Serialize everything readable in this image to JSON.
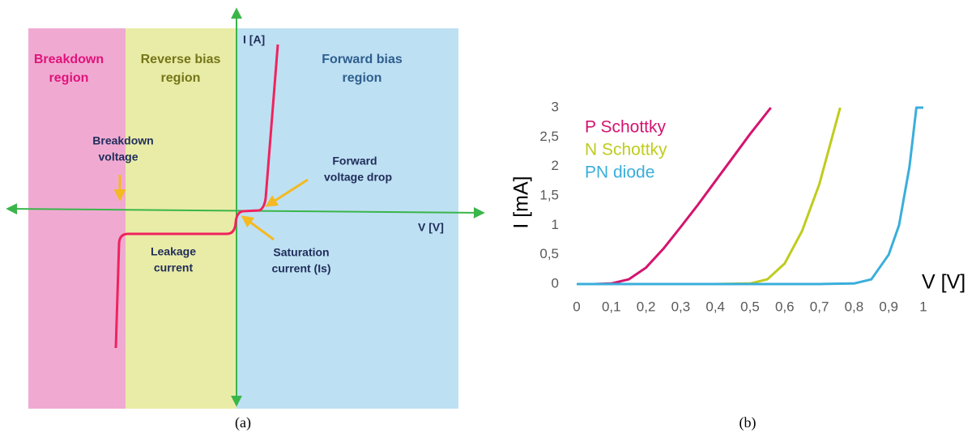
{
  "diagram": {
    "y_axis_label": "I [A]",
    "x_axis_label": "V [V]",
    "breakdown_region": [
      "Breakdown",
      "region"
    ],
    "reverse_bias_region": [
      "Reverse bias",
      "region"
    ],
    "forward_bias_region": [
      "Forward bias",
      "region"
    ],
    "breakdown_voltage": [
      "Breakdown",
      "voltage"
    ],
    "forward_voltage_drop": [
      "Forward",
      "voltage drop"
    ],
    "leakage_current": [
      "Leakage",
      "current"
    ],
    "saturation_current": [
      "Saturation",
      "current (Is)"
    ],
    "caption": "(a)"
  },
  "chart_data": {
    "type": "line",
    "caption": "(b)",
    "xlabel": "V [V]",
    "ylabel": "I [mA]",
    "xlim": [
      0,
      1
    ],
    "ylim": [
      0,
      3
    ],
    "xticks": [
      0,
      {
        "value": 0.1,
        "label": "0,1"
      },
      {
        "value": 0.2,
        "label": "0,2"
      },
      {
        "value": 0.3,
        "label": "0,3"
      },
      {
        "value": 0.4,
        "label": "0,4"
      },
      {
        "value": 0.5,
        "label": "0,5"
      },
      {
        "value": 0.6,
        "label": "0,6"
      },
      {
        "value": 0.7,
        "label": "0,7"
      },
      {
        "value": 0.8,
        "label": "0,8"
      },
      {
        "value": 0.9,
        "label": "0,9"
      },
      1
    ],
    "yticks": [
      0,
      {
        "value": 0.5,
        "label": "0,5"
      },
      1,
      {
        "value": 1.5,
        "label": "1,5"
      },
      2,
      {
        "value": 2.5,
        "label": "2,5"
      },
      3
    ],
    "legend": "upper left",
    "series": [
      {
        "name": "P Schottky",
        "color": "#d4146f",
        "x": [
          0,
          0.05,
          0.1,
          0.15,
          0.2,
          0.25,
          0.3,
          0.35,
          0.4,
          0.45,
          0.5,
          0.56
        ],
        "values": [
          0,
          0,
          0.01,
          0.08,
          0.28,
          0.6,
          0.97,
          1.35,
          1.75,
          2.15,
          2.55,
          3
        ]
      },
      {
        "name": "N Schottky",
        "color": "#bfcc1c",
        "x": [
          0,
          0.1,
          0.2,
          0.3,
          0.4,
          0.5,
          0.55,
          0.6,
          0.65,
          0.7,
          0.76
        ],
        "values": [
          0,
          0,
          0,
          0,
          0,
          0.01,
          0.08,
          0.35,
          0.9,
          1.7,
          3
        ]
      },
      {
        "name": "PN diode",
        "color": "#3aaedb",
        "x": [
          0,
          0.1,
          0.2,
          0.3,
          0.4,
          0.5,
          0.6,
          0.7,
          0.8,
          0.85,
          0.9,
          0.93,
          0.96,
          0.98,
          1
        ],
        "values": [
          0,
          0,
          0,
          0,
          0,
          0,
          0,
          0,
          0.01,
          0.08,
          0.5,
          1,
          2,
          3,
          3
        ]
      }
    ]
  }
}
